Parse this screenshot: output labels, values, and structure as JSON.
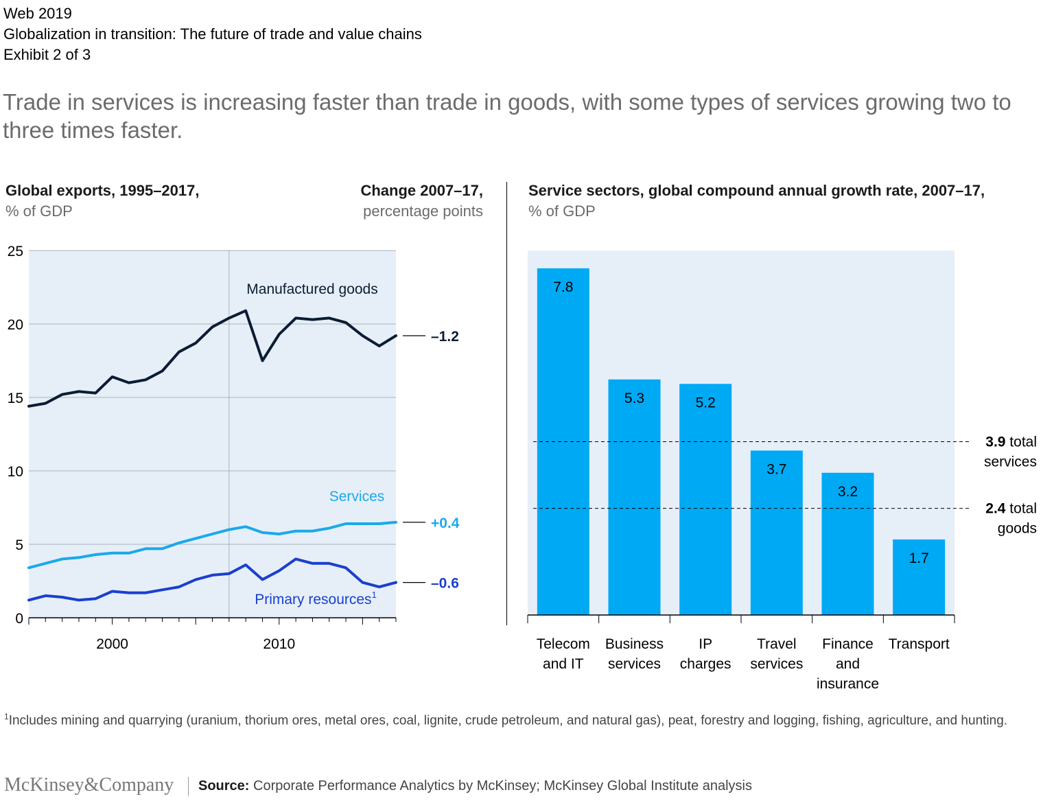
{
  "header": {
    "line1": "Web 2019",
    "line2": "Globalization in transition: The future of trade and value chains",
    "line3": "Exhibit 2 of 3"
  },
  "headline": "Trade in services is increasing faster than trade in goods, with some types of services growing two to three times faster.",
  "left_chart": {
    "title_bold": "Global exports, 1995–2017,",
    "title_unit": "% of GDP",
    "change_title_bold": "Change 2007–17,",
    "change_title_unit": "percentage points"
  },
  "right_chart": {
    "title_bold": "Service sectors, global compound annual growth rate, 2007–17,",
    "title_unit": "% of GDP"
  },
  "colors": {
    "panel_bg": "#e6eff7",
    "manufactured": "#0b1c33",
    "services": "#1aa9ea",
    "primary": "#1a3fcf",
    "bar": "#00a9f4",
    "grid": "#a9b3bd"
  },
  "chart_data": [
    {
      "type": "line",
      "title": "Global exports, 1995–2017,",
      "ylabel": "% of GDP",
      "ylim": [
        0,
        25
      ],
      "yticks": [
        0,
        5,
        10,
        15,
        20,
        25
      ],
      "xlim": [
        1995,
        2017
      ],
      "xticks": [
        2000,
        2010
      ],
      "xtick_labels": [
        "2000",
        "2010"
      ],
      "reference_year": 2007,
      "x": [
        1995,
        1996,
        1997,
        1998,
        1999,
        2000,
        2001,
        2002,
        2003,
        2004,
        2005,
        2006,
        2007,
        2008,
        2009,
        2010,
        2011,
        2012,
        2013,
        2014,
        2015,
        2016,
        2017
      ],
      "series": [
        {
          "name": "Manufactured goods",
          "color": "#0b1c33",
          "change": "–1.2",
          "values": [
            14.4,
            14.6,
            15.2,
            15.4,
            15.3,
            16.4,
            16.0,
            16.2,
            16.8,
            18.1,
            18.7,
            19.8,
            20.4,
            20.9,
            17.5,
            19.3,
            20.4,
            20.3,
            20.4,
            20.1,
            19.2,
            18.5,
            19.2
          ]
        },
        {
          "name": "Services",
          "color": "#1aa9ea",
          "change": "+0.4",
          "values": [
            3.4,
            3.7,
            4.0,
            4.1,
            4.3,
            4.4,
            4.4,
            4.7,
            4.7,
            5.1,
            5.4,
            5.7,
            6.0,
            6.2,
            5.8,
            5.7,
            5.9,
            5.9,
            6.1,
            6.4,
            6.4,
            6.4,
            6.5
          ]
        },
        {
          "name": "Primary resources",
          "name_sup": "1",
          "color": "#1a3fcf",
          "change": "–0.6",
          "values": [
            1.2,
            1.5,
            1.4,
            1.2,
            1.3,
            1.8,
            1.7,
            1.7,
            1.9,
            2.1,
            2.6,
            2.9,
            3.0,
            3.6,
            2.6,
            3.2,
            4.0,
            3.7,
            3.7,
            3.4,
            2.4,
            2.1,
            2.4
          ]
        }
      ]
    },
    {
      "type": "bar",
      "title": "Service sectors, global compound annual growth rate, 2007–17,",
      "ylabel": "% of GDP",
      "ylim": [
        0,
        8.2
      ],
      "categories": [
        [
          "Telecom",
          "and IT"
        ],
        [
          "Business",
          "services"
        ],
        [
          "IP",
          "charges"
        ],
        [
          "Travel",
          "services"
        ],
        [
          "Finance",
          "and",
          "insurance"
        ],
        [
          "Transport"
        ]
      ],
      "values": [
        7.8,
        5.3,
        5.2,
        3.7,
        3.2,
        1.7
      ],
      "value_labels": [
        "7.8",
        "5.3",
        "5.2",
        "3.7",
        "3.2",
        "1.7"
      ],
      "reference_lines": [
        {
          "value": 3.9,
          "value_label": "3.9",
          "label1": "total",
          "label2": "services"
        },
        {
          "value": 2.4,
          "value_label": "2.4",
          "label1": "total",
          "label2": "goods"
        }
      ]
    }
  ],
  "footnote": {
    "marker": "1",
    "text": "Includes mining and quarrying (uranium, thorium ores, metal ores, coal, lignite, crude petroleum, and natural gas), peat, forestry and logging, fishing, agriculture, and hunting."
  },
  "footer": {
    "logo": "McKinsey&Company",
    "source_label": "Source:",
    "source_text": "Corporate Performance Analytics by McKinsey; McKinsey Global Institute analysis"
  }
}
